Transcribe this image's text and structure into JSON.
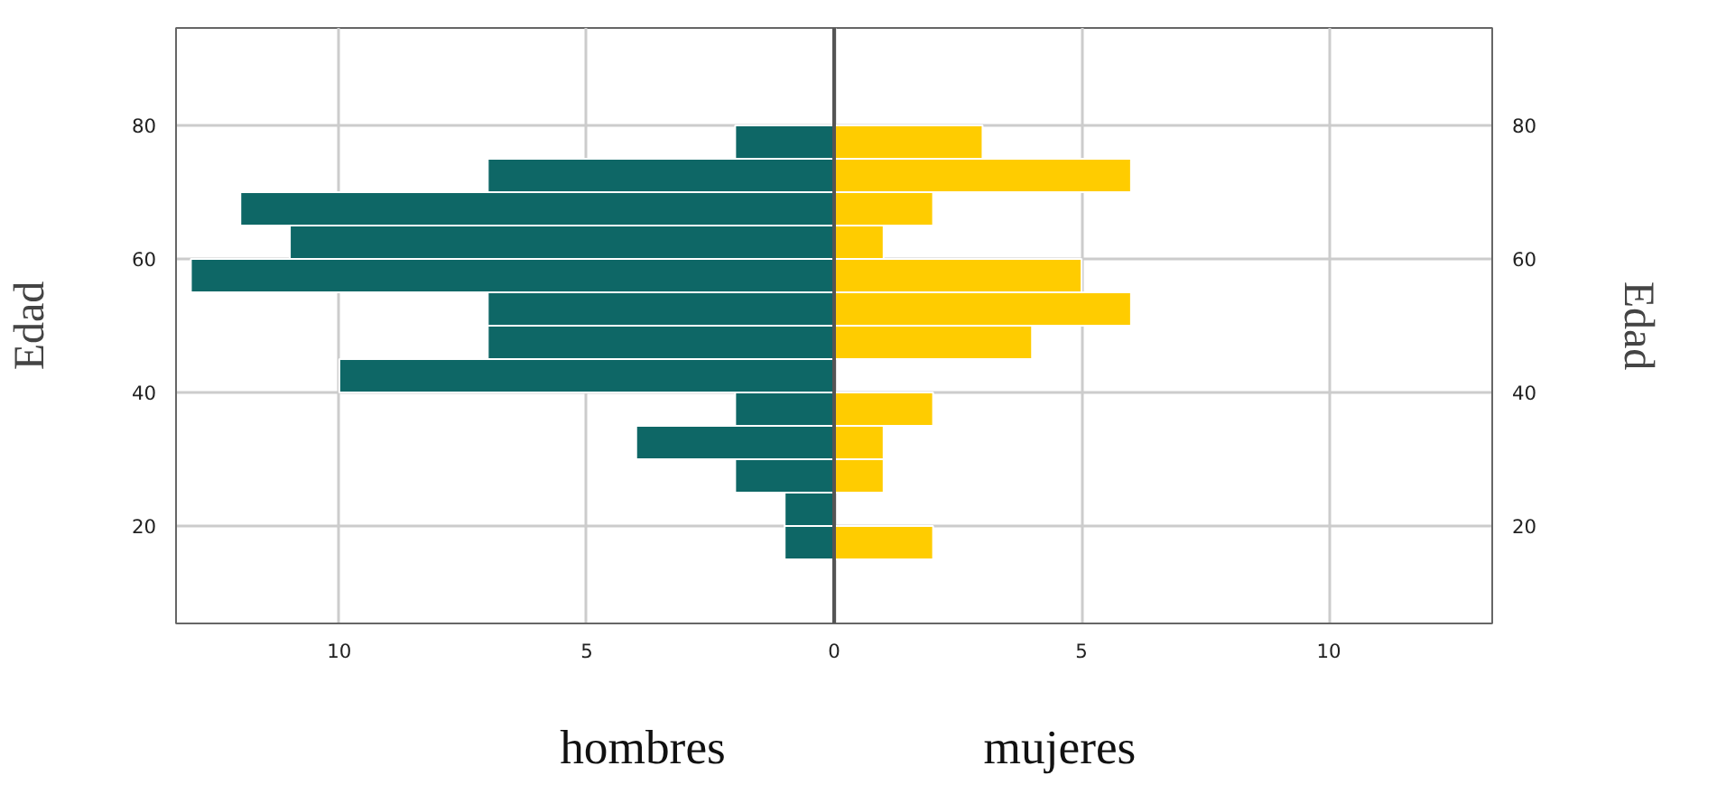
{
  "chart_data": {
    "type": "bar",
    "orientation": "horizontal",
    "stacked": true,
    "ylabel": "Edad",
    "y2label": "Edad",
    "x": [
      77.5,
      72.5,
      67.5,
      62.5,
      57.5,
      52.5,
      47.5,
      42.5,
      37.5,
      32.5,
      27.5,
      22.5,
      17.5
    ],
    "series": [
      {
        "color": "#0e6766",
        "values": [
          -2,
          -7,
          -12,
          -11,
          -13,
          -7,
          -7,
          -10,
          -2,
          -4,
          -2,
          -1,
          -1
        ]
      },
      {
        "color": "#ffcc00",
        "values": [
          3,
          6,
          2,
          1,
          5,
          6,
          4,
          0,
          2,
          1,
          1,
          0,
          2
        ]
      }
    ],
    "xlim": [
      -13.3,
      13.3
    ],
    "xticks": [
      {
        "value": -10,
        "label": "10"
      },
      {
        "value": -5,
        "label": "5"
      },
      0,
      5,
      10
    ],
    "ylim": [
      5.4,
      94.6
    ],
    "yticks": [
      20,
      40,
      60,
      80
    ],
    "y2lim": [
      5.4,
      94.6
    ],
    "y2ticks": [
      20,
      40,
      60,
      80
    ],
    "ref_lines": [
      {
        "axis": "x",
        "value": 0,
        "color": "#555555"
      }
    ],
    "annotations": [
      "hombres",
      "mujeres"
    ],
    "grid": true
  }
}
